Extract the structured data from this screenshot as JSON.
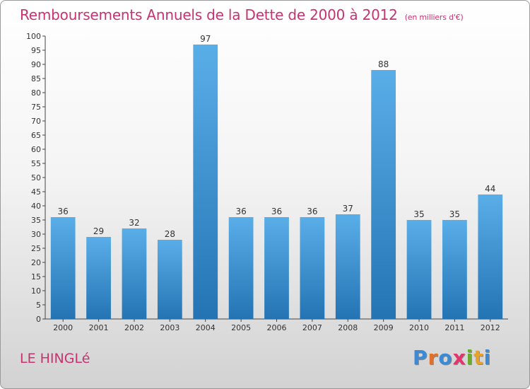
{
  "header": {
    "title": "Remboursements Annuels de la Dette de 2000 à 2012",
    "unit": "(en milliers d'€)"
  },
  "commune": "LE HINGLé",
  "logo": "Proxiti",
  "colors": {
    "title": "#c8336f",
    "bar_top": "#5aaee8",
    "bar_bottom": "#2474b4"
  },
  "chart_data": {
    "type": "bar",
    "title": "Remboursements Annuels de la Dette de 2000 à 2012",
    "categories": [
      "2000",
      "2001",
      "2002",
      "2003",
      "2004",
      "2005",
      "2006",
      "2007",
      "2008",
      "2009",
      "2010",
      "2011",
      "2012"
    ],
    "values": [
      36,
      29,
      32,
      28,
      97,
      36,
      36,
      36,
      37,
      88,
      35,
      35,
      44
    ],
    "ylim": [
      0,
      100
    ],
    "ytick_step": 5,
    "grid": false,
    "legend": "none"
  }
}
